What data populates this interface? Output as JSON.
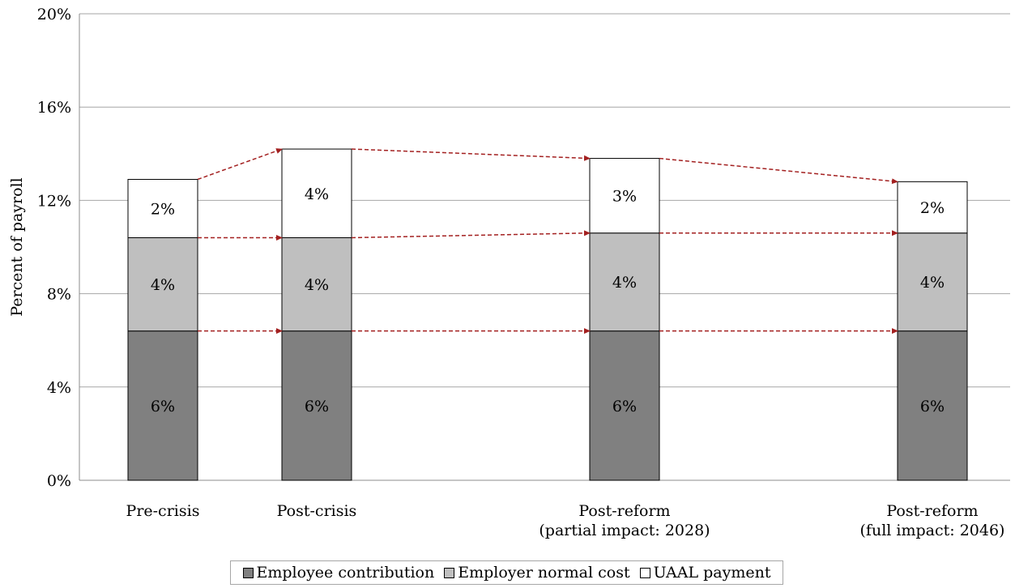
{
  "chart_data": {
    "type": "bar",
    "stacked": true,
    "ylabel": "Percent of payroll",
    "xlabel": "",
    "ylim": [
      0,
      20
    ],
    "yticks": [
      "0%",
      "4%",
      "8%",
      "12%",
      "16%",
      "20%"
    ],
    "grid": true,
    "legend_position": "bottom",
    "categories": [
      [
        "Pre-crisis"
      ],
      [
        "Post-crisis"
      ],
      [
        "Post-reform",
        "(partial impact: 2028)"
      ],
      [
        "Post-reform",
        "(full impact: 2046)"
      ]
    ],
    "series": [
      {
        "name": "Employee contribution",
        "color": "#808080",
        "values": [
          6.4,
          6.4,
          6.4,
          6.4
        ],
        "labels": [
          "6%",
          "6%",
          "6%",
          "6%"
        ]
      },
      {
        "name": "Employer normal cost",
        "color": "#bfbfbf",
        "values": [
          4.0,
          4.0,
          4.2,
          4.2
        ],
        "labels": [
          "4%",
          "4%",
          "4%",
          "4%"
        ]
      },
      {
        "name": "UAAL payment",
        "color": "#ffffff",
        "values": [
          2.5,
          3.8,
          3.2,
          2.2
        ],
        "labels": [
          "2%",
          "4%",
          "3%",
          "2%"
        ]
      }
    ],
    "connector_color": "#a32020"
  }
}
